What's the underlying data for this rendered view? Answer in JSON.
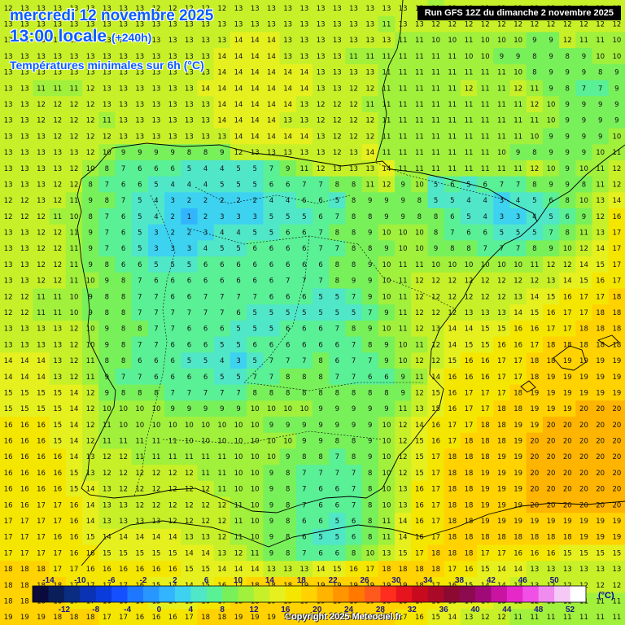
{
  "header": {
    "date": "mercredi 12 novembre 2025",
    "time": "13:00 locale",
    "lead": "(+240h)",
    "variable": "Températures minimales sur 6h (°C)",
    "run": "Run GFS 12Z du dimanche 2 novembre 2025"
  },
  "footer": {
    "copyright": "Copyright 2025 Meteociel.fr"
  },
  "legend": {
    "unit": "(°C)",
    "top_labels": [
      "-14",
      "-10",
      "-6",
      "-2",
      "2",
      "6",
      "10",
      "14",
      "18",
      "22",
      "26",
      "30",
      "34",
      "38",
      "42",
      "46",
      "50"
    ],
    "bottom_labels": [
      "-12",
      "-8",
      "-4",
      "0",
      "4",
      "8",
      "12",
      "16",
      "20",
      "24",
      "28",
      "32",
      "36",
      "40",
      "44",
      "48",
      "52"
    ],
    "colors": [
      "#0a0a3c",
      "#0a1e5a",
      "#0a2d82",
      "#0a32b4",
      "#0a3cdc",
      "#1450ff",
      "#1e78ff",
      "#2896ff",
      "#32b4ff",
      "#3cd2f0",
      "#50e6c8",
      "#5af096",
      "#78f05a",
      "#a0f03c",
      "#c8f028",
      "#e6f01e",
      "#f5e600",
      "#ffd200",
      "#ffb400",
      "#ff9600",
      "#ff7800",
      "#ff5a1e",
      "#ff2d1e",
      "#e6141e",
      "#c80a1e",
      "#aa0a28",
      "#8c0a32",
      "#8c0a50",
      "#a00a78",
      "#c814a0",
      "#e628c8",
      "#f050e6",
      "#f08cf0",
      "#f5c8f5",
      "#ffffff"
    ]
  },
  "map": {
    "temperature_grid": [
      "12 13 13 13 13 13 13 13 13 12 12 12 12 12 13 13 13 13 13 13 13 13 13 13 13 13 11 13 13 12 13 12 13 13 13 13 13 12",
      "13 13 13 13 13 13 13 13 13 13 13 13 13 13 13 13 13 13 13 13 13 13 13 11 13 13 12 12 12 12 12 12 12 12 12 12 12 12",
      "13 13 13 13 13 13 13 13 13 13 13 13 13 13 14 14 14 13 13 13 13 13 13 13 11 11 10 10 11 10 10 10 9 9 12 11 11 10",
      "13 13 13 13 13 13 13 13 13 13 13 13 13 14 14 14 14 13 13 13 13 11 11 11 11 11 11 11 10 10 9 9 8 9 8 9 10 10",
      "13 13 13 13 13 13 13 13 13 13 13 13 13 14 14 14 14 14 14 13 13 13 13 11 11 11 11 11 11 11 11 10 8 9 9 9 8 9",
      "13 13 11 11 11 12 13 13 13 13 13 13 14 14 14 14 14 14 14 13 13 12 12 11 11 11 11 11 12 11 11 12 11 9 8 7 7 9",
      "13 13 12 12 12 12 13 13 13 13 13 13 13 14 14 14 14 14 13 12 12 12 11 11 11 11 11 11 11 11 11 11 12 10 9 9 9 9",
      "13 13 12 12 12 12 11 13 13 13 13 13 13 14 14 14 14 13 13 12 12 12 12 11 11 11 11 11 11 11 11 11 11 10 9 9 9 9",
      "13 13 13 12 12 12 12 13 13 13 13 13 13 13 14 14 14 14 14 13 12 12 12 11 11 11 11 11 11 11 11 11 10 9 9 9 9 10",
      "13 13 13 13 13 12 10 9 9 9 9 8 8 9 12 13 13 13 13 13 12 13 14 11 11 11 11 11 11 11 10 9 8 9 9 9 10 11",
      "13 13 13 13 12 10 8 7 6 6 6 5 4 4 5 5 7 9 11 12 13 13 13 14 11 11 11 11 11 11 11 11 12 10 9 10 11 12",
      "13 13 13 12 12 8 7 6 6 5 4 4 4 5 5 5 6 6 7 7 8 8 11 12 9 10 5 6 5 6 7 7 8 9 9 8 11 12",
      "12 12 13 12 11 9 8 7 5 4 3 2 2 2 2 2 4 4 6 6 5 8 9 9 9 8 5 5 4 4 3 4 5 6 8 10 13 14",
      "12 12 12 11 10 8 7 6 5 4 2 1 2 3 3 3 5 5 5 6 7 8 8 9 9 8 8 6 5 4 3 3 4 5 6 9 12 16",
      "13 13 12 12 11 9 7 6 5 3 2 2 3 4 4 5 5 6 6 7 8 8 9 10 10 10 8 7 6 6 5 5 5 7 8 11 13 17",
      "13 13 12 12 11 9 7 6 5 3 3 3 4 5 5 6 6 6 6 7 7 8 8 9 10 10 9 8 8 7 7 7 8 9 10 12 14 17",
      "13 13 12 12 11 9 8 6 6 5 5 5 6 6 6 6 6 6 6 6 8 8 9 10 11 11 10 10 10 10 10 10 11 12 12 14 15 17",
      "13 13 12 12 11 10 9 8 7 6 6 6 6 6 6 6 6 7 7 7 8 9 9 10 11 12 12 12 12 12 12 12 12 13 14 15 16 17",
      "12 12 11 11 10 9 8 8 7 7 6 6 7 7 7 7 6 6 6 5 5 7 9 10 11 12 12 12 12 12 12 13 14 15 16 17 17 18",
      "12 12 11 11 10 9 8 8 7 7 7 7 7 7 6 5 5 5 5 5 5 5 7 9 11 12 12 12 13 13 13 14 15 16 17 17 18 18",
      "13 13 13 13 12 10 9 8 8 7 7 6 6 6 5 5 5 6 6 6 7 8 9 10 11 12 13 14 14 15 15 16 16 17 17 18 18 18",
      "13 13 13 13 12 10 9 8 7 7 6 6 6 5 5 6 6 6 6 6 6 7 8 9 10 11 12 14 15 15 16 16 17 18 18 18 18 18",
      "14 14 14 13 12 11 8 8 6 6 6 5 5 4 3 5 7 7 7 8 6 7 7 9 10 12 12 15 16 16 17 17 18 18 19 19 19 19",
      "14 14 14 13 12 11 9 7 7 6 6 6 6 5 5 7 7 8 8 8 7 7 6 6 9 11 14 16 16 16 17 17 18 19 19 19 19 19",
      "15 15 15 15 14 12 9 8 8 8 7 7 7 7 7 8 8 8 8 8 8 8 8 8 9 12 15 16 17 17 17 18 19 19 19 19 19 19",
      "15 15 15 15 14 12 10 10 10 10 9 9 9 9 9 10 10 10 10 9 9 9 9 9 11 13 15 16 17 17 18 18 19 19 19 20 20 20",
      "16 16 16 15 14 12 11 10 10 10 10 10 10 10 10 10 9 9 9 9 9 9 9 10 12 14 16 17 17 18 18 19 19 20 20 20 20 20",
      "16 16 16 15 14 12 11 11 11 11 11 10 10 10 10 10 10 10 9 9 8 8 9 10 12 15 16 17 18 18 18 19 20 20 20 20 20 20",
      "16 16 16 16 14 13 12 12 11 11 11 11 11 11 10 10 10 9 8 8 7 8 9 10 12 15 17 18 18 18 19 19 20 20 20 20 20 20",
      "16 16 16 16 15 13 12 12 12 12 12 12 11 11 10 10 9 8 7 7 7 7 8 10 12 15 17 18 18 19 19 19 20 20 20 20 20 20",
      "16 16 16 16 15 14 13 12 12 12 12 12 12 11 10 10 9 8 7 6 6 7 8 10 13 16 17 18 18 19 19 19 20 20 20 20 20 20",
      "16 16 17 17 16 14 13 13 12 12 12 12 12 12 11 10 9 8 7 6 6 7 8 10 13 16 17 18 18 19 19 19 20 20 20 20 20 20",
      "17 17 17 17 16 14 13 13 13 13 12 12 12 12 11 10 9 8 6 6 5 6 8 11 14 16 17 18 18 19 19 19 19 19 19 19 19 19",
      "17 17 17 16 16 15 14 14 14 14 14 13 13 12 11 10 9 8 6 5 5 6 8 11 14 16 17 18 18 18 18 18 18 18 18 19 19 19",
      "17 17 17 17 16 16 15 15 15 15 15 14 14 13 12 11 9 8 7 6 6 8 10 13 15 17 18 18 18 17 17 16 16 16 15 15 15 15",
      "18 18 18 17 17 16 16 16 16 16 16 15 15 14 14 14 13 13 13 14 15 16 17 18 18 18 18 17 16 15 14 14 13 13 13 13 13 13",
      "18 18 18 18 17 17 17 17 16 15 14 14 15 16 17 18 18 18 19 19 19 19 19 19 19 18 17 16 15 14 14 13 13 12 12 12 12 12",
      "18 18 18 18 17 17 16 16 16 15 14 15 16 17 18 18 19 19 19 19 19 19 19 18 18 17 16 15 14 14 13 12 12 11 11 11 11 11",
      "19 19 19 18 18 18 17 17 16 16 16 17 18 18 19 19 19 19 19 19 19 19 18 18 17 16 15 14 13 12 12 11 11 11 11 11 11 11"
    ]
  }
}
